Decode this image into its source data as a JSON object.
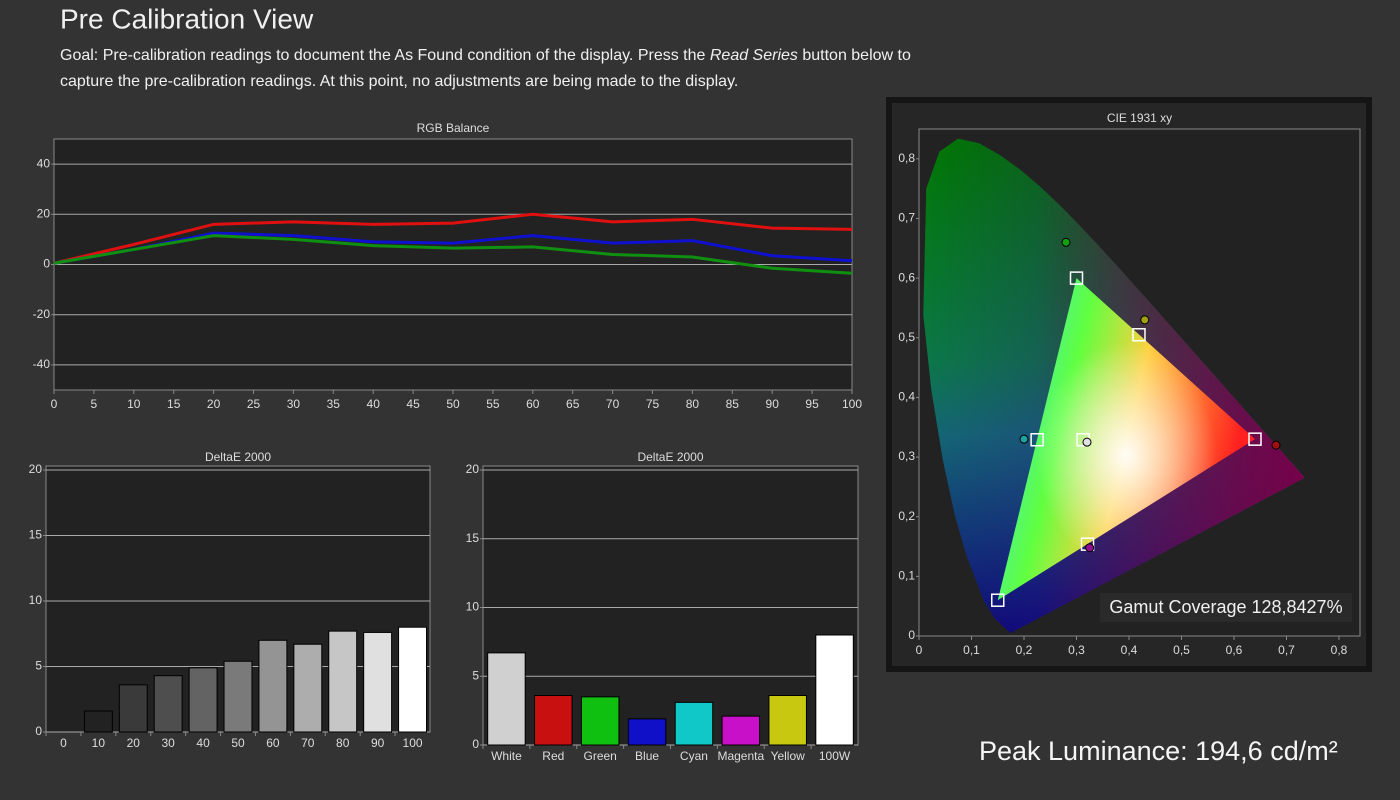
{
  "header": {
    "title": "Pre Calibration View",
    "goal_line1": [
      "Goal: Pre-calibration readings to document the As Found condition of the display. Press the ",
      "Read Series",
      " button below to"
    ],
    "goal_line2": "capture the pre-calibration readings. At this point, no adjustments are being made to the display."
  },
  "chart_data": [
    {
      "type": "line",
      "title": "RGB Balance",
      "x": [
        0,
        10,
        20,
        30,
        40,
        50,
        60,
        70,
        80,
        90,
        100
      ],
      "series": [
        {
          "color": "#e01010",
          "values": [
            0.5,
            8,
            16,
            17,
            16,
            16.5,
            20,
            17,
            18,
            14.5,
            14
          ]
        },
        {
          "color": "#1010d0",
          "values": [
            0.5,
            6,
            12.5,
            11.5,
            9,
            8.5,
            11.5,
            8.5,
            9.5,
            3.5,
            1.5
          ]
        },
        {
          "color": "#109010",
          "values": [
            0.5,
            6,
            11.5,
            10,
            7.5,
            6.5,
            7,
            4,
            3,
            -1.5,
            -3.5
          ]
        }
      ],
      "xlim": [
        0,
        100
      ],
      "xticks": [
        0,
        5,
        10,
        15,
        20,
        25,
        30,
        35,
        40,
        45,
        50,
        55,
        60,
        65,
        70,
        75,
        80,
        85,
        90,
        95,
        100
      ],
      "ylim": [
        -50,
        50
      ],
      "yticks": [
        -40,
        -20,
        0,
        20,
        40
      ],
      "grid": true
    },
    {
      "type": "bar",
      "title": "DeltaE 2000",
      "categories": [
        "0",
        "10",
        "20",
        "30",
        "40",
        "50",
        "60",
        "70",
        "80",
        "90",
        "100"
      ],
      "values": [
        0,
        1.6,
        3.6,
        4.3,
        4.9,
        5.4,
        7.0,
        6.7,
        7.7,
        7.6,
        8.0
      ],
      "colors": [
        "#111111",
        "#222222",
        "#3a3a3a",
        "#4e4e4e",
        "#636363",
        "#7a7a7a",
        "#949494",
        "#adadad",
        "#c6c6c6",
        "#e0e0e0",
        "#ffffff"
      ],
      "ylim": [
        0,
        20
      ],
      "yticks": [
        0,
        5,
        10,
        15,
        20
      ],
      "grid": true
    },
    {
      "type": "bar",
      "title": "DeltaE 2000",
      "categories": [
        "White",
        "Red",
        "Green",
        "Blue",
        "Cyan",
        "Magenta",
        "Yellow",
        "100W"
      ],
      "values": [
        6.7,
        3.6,
        3.5,
        1.9,
        3.1,
        2.1,
        3.6,
        8.0
      ],
      "colors": [
        "#d0d0d0",
        "#c81010",
        "#10c010",
        "#1010c8",
        "#10c8c8",
        "#c810c8",
        "#c8c810",
        "#ffffff"
      ],
      "ylim": [
        0,
        20
      ],
      "yticks": [
        0,
        5,
        10,
        15,
        20
      ],
      "grid": true
    },
    {
      "type": "scatter",
      "title": "CIE 1931 xy",
      "series": [
        {
          "marker": "square",
          "color": "#ffffff",
          "x": [
            0.64,
            0.3,
            0.15,
            0.3127,
            0.225,
            0.321,
            0.419
          ],
          "y": [
            0.33,
            0.6,
            0.06,
            0.329,
            0.329,
            0.154,
            0.505
          ]
        },
        {
          "marker": "circle",
          "colors": [
            "#a01010",
            "#10a010",
            "#e0e0e0",
            "#20a0a0",
            "#901090",
            "#a0a010"
          ],
          "x": [
            0.68,
            0.28,
            0.32,
            0.2,
            0.325,
            0.43
          ],
          "y": [
            0.32,
            0.66,
            0.325,
            0.33,
            0.148,
            0.53
          ]
        }
      ],
      "annotation": "Gamut Coverage 128,8427%",
      "xlim": [
        0,
        0.84
      ],
      "ylim": [
        0,
        0.85
      ],
      "xticks": [
        0,
        {
          "value": 0.1,
          "label": "0,1"
        },
        {
          "value": 0.2,
          "label": "0,2"
        },
        {
          "value": 0.3,
          "label": "0,3"
        },
        {
          "value": 0.4,
          "label": "0,4"
        },
        {
          "value": 0.5,
          "label": "0,5"
        },
        {
          "value": 0.6,
          "label": "0,6"
        },
        {
          "value": 0.7,
          "label": "0,7"
        },
        {
          "value": 0.8,
          "label": "0,8"
        }
      ],
      "yticks": [
        0,
        {
          "value": 0.1,
          "label": "0,1"
        },
        {
          "value": 0.2,
          "label": "0,2"
        },
        {
          "value": 0.3,
          "label": "0,3"
        },
        {
          "value": 0.4,
          "label": "0,4"
        },
        {
          "value": 0.5,
          "label": "0,5"
        },
        {
          "value": 0.6,
          "label": "0,6"
        },
        {
          "value": 0.7,
          "label": "0,7"
        },
        {
          "value": 0.8,
          "label": "0,8"
        }
      ]
    }
  ],
  "footer": {
    "peak_luminance": "Peak Luminance: 194,6 cd/m²"
  }
}
